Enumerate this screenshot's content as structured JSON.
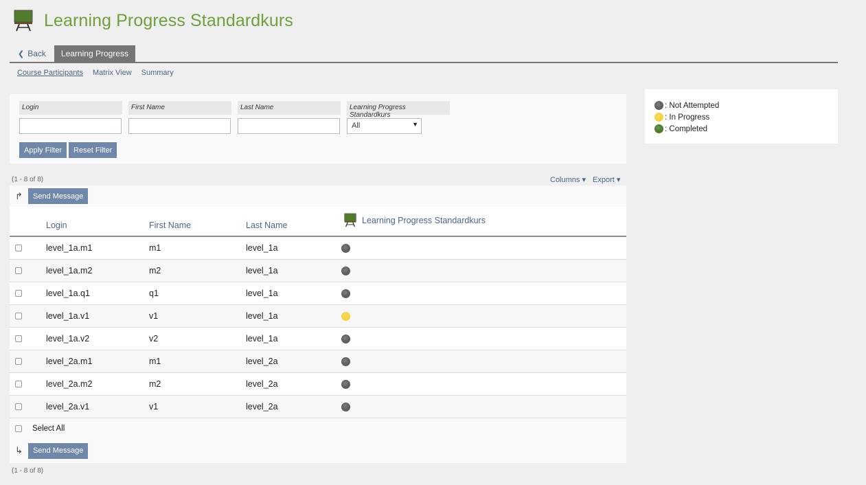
{
  "header": {
    "title": "Learning Progress Standardkurs",
    "icon": "course-board-icon"
  },
  "tabs": {
    "back_label": "Back",
    "active_label": "Learning Progress"
  },
  "subtabs": [
    {
      "label": "Course Participants",
      "active": true
    },
    {
      "label": "Matrix View",
      "active": false
    },
    {
      "label": "Summary",
      "active": false
    }
  ],
  "filters": {
    "login_label": "Login",
    "login_value": "",
    "first_name_label": "First Name",
    "first_name_value": "",
    "last_name_label": "Last Name",
    "last_name_value": "",
    "course_label": "Learning Progress Standardkurs",
    "course_value": "All",
    "apply_label": "Apply Filter",
    "reset_label": "Reset Filter"
  },
  "table": {
    "range_text": "(1 - 8 of 8)",
    "columns_label": "Columns",
    "export_label": "Export",
    "send_message_label": "Send Message",
    "select_all_label": "Select All",
    "headers": {
      "login": "Login",
      "first_name": "First Name",
      "last_name": "Last Name",
      "course": "Learning Progress Standardkurs"
    },
    "rows": [
      {
        "login": "level_1a.m1",
        "first_name": "m1",
        "last_name": "level_1a",
        "status": "not_attempted"
      },
      {
        "login": "level_1a.m2",
        "first_name": "m2",
        "last_name": "level_1a",
        "status": "not_attempted"
      },
      {
        "login": "level_1a.q1",
        "first_name": "q1",
        "last_name": "level_1a",
        "status": "not_attempted"
      },
      {
        "login": "level_1a.v1",
        "first_name": "v1",
        "last_name": "level_1a",
        "status": "in_progress"
      },
      {
        "login": "level_1a.v2",
        "first_name": "v2",
        "last_name": "level_1a",
        "status": "not_attempted"
      },
      {
        "login": "level_2a.m1",
        "first_name": "m1",
        "last_name": "level_2a",
        "status": "not_attempted"
      },
      {
        "login": "level_2a.m2",
        "first_name": "m2",
        "last_name": "level_2a",
        "status": "not_attempted"
      },
      {
        "login": "level_2a.v1",
        "first_name": "v1",
        "last_name": "level_2a",
        "status": "not_attempted"
      }
    ]
  },
  "legend": {
    "not_attempted": ": Not Attempted",
    "in_progress": ": In Progress",
    "completed": ": Completed"
  },
  "colors": {
    "not_attempted": "#5e5e5e",
    "in_progress": "#f3d23c",
    "completed": "#4a7a2a",
    "title": "#6ea03c",
    "link": "#4c6586"
  }
}
